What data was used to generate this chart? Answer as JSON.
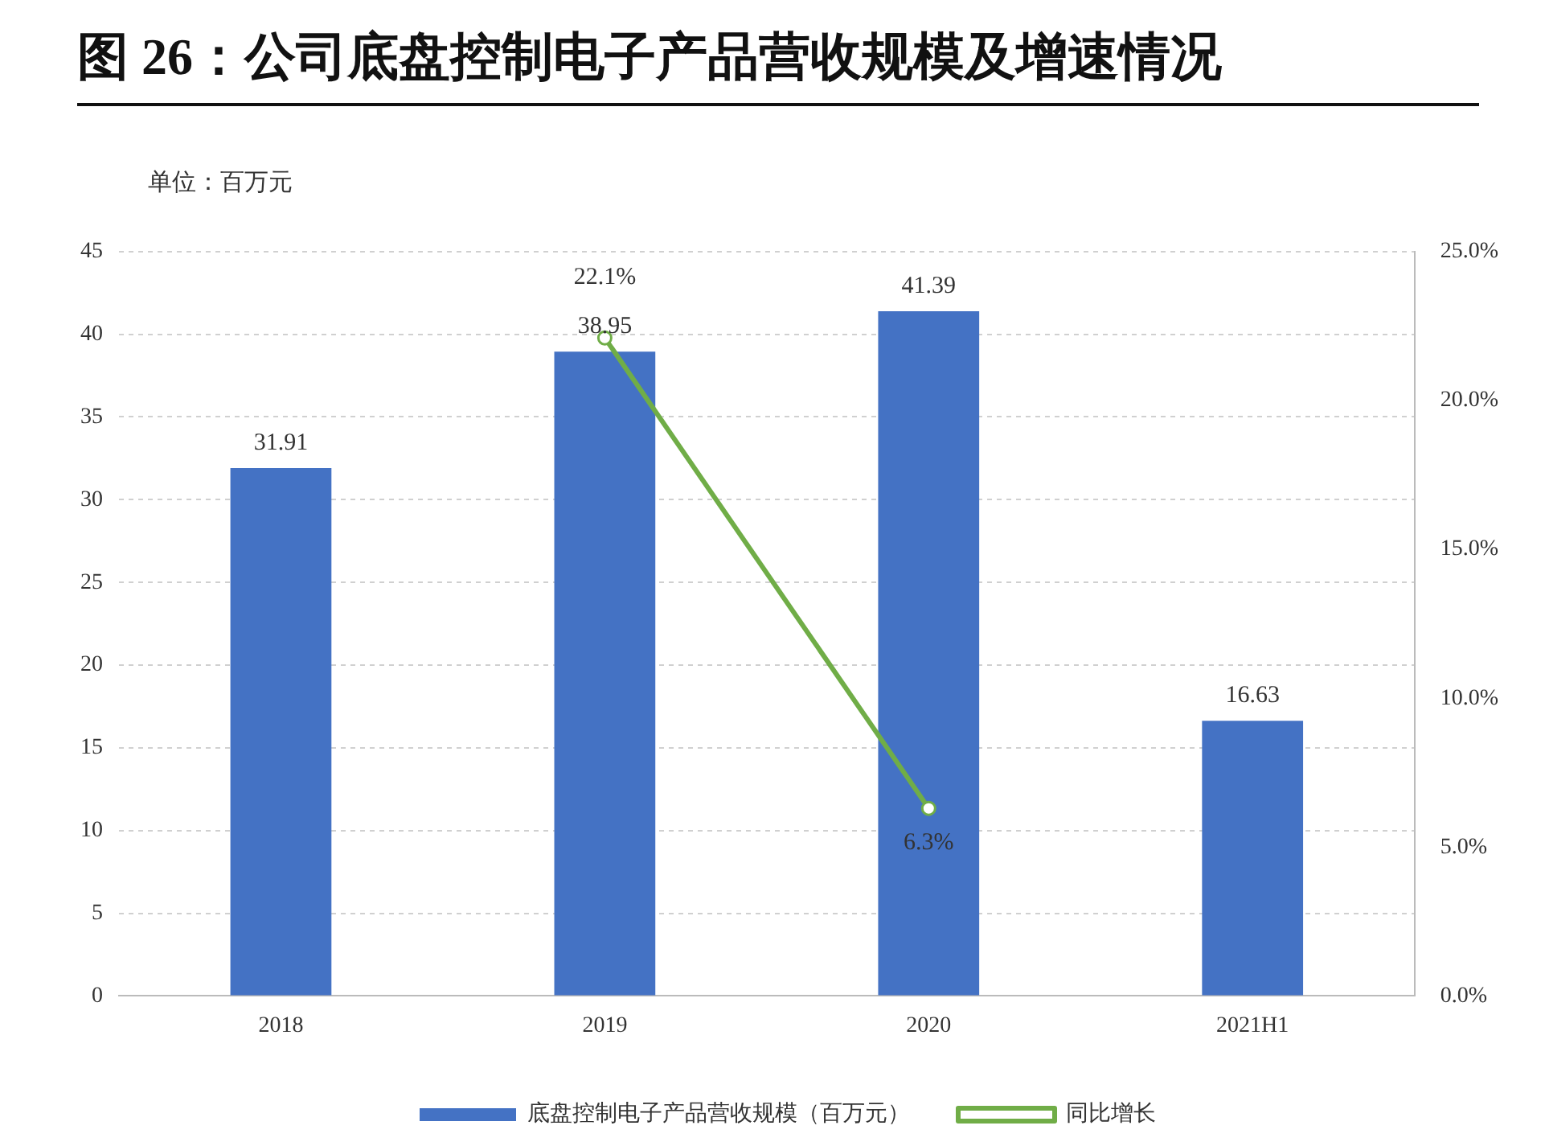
{
  "chart_data": {
    "type": "bar",
    "title": "图  26：公司底盘控制电子产品营收规模及增速情况",
    "subtitle": "单位：百万元",
    "categories": [
      "2018",
      "2019",
      "2020",
      "2021H1"
    ],
    "series": [
      {
        "name": "底盘控制电子产品营收规模（百万元）",
        "color": "#4472c4",
        "values": [
          31.91,
          38.95,
          41.39,
          16.63
        ],
        "value_labels": [
          "31.91",
          "38.95",
          "41.39",
          "16.63"
        ]
      },
      {
        "name": "同比增长",
        "type": "line",
        "axis": "y2",
        "color": "#70ad47",
        "values": [
          null,
          22.1,
          6.3,
          null
        ],
        "value_labels": [
          null,
          "22.1%",
          "6.3%",
          null
        ],
        "marker": "circle"
      }
    ],
    "ylim": [
      0,
      45
    ],
    "yticks": [
      0,
      5,
      10,
      15,
      20,
      25,
      30,
      35,
      40,
      45
    ],
    "y2lim": [
      0,
      25
    ],
    "y2ticks": [
      {
        "value": 0,
        "label": "0.0%"
      },
      {
        "value": 5,
        "label": "5.0%"
      },
      {
        "value": 10,
        "label": "10.0%"
      },
      {
        "value": 15,
        "label": "15.0%"
      },
      {
        "value": 20,
        "label": "20.0%"
      },
      {
        "value": 25,
        "label": "25.0%"
      }
    ],
    "grid": "y",
    "legend": "bottom"
  }
}
